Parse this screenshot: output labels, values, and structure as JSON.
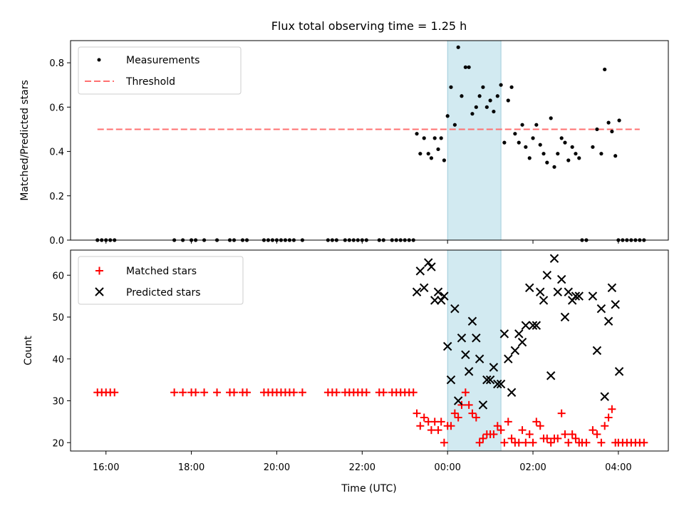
{
  "chart_data": [
    {
      "type": "scatter",
      "title": "Flux total observing time = 1.25 h",
      "ylabel": "Matched/Predicted stars",
      "xlabel": "",
      "ylim": [
        0,
        0.9
      ],
      "yticks": [
        "0.0",
        "0.2",
        "0.4",
        "0.6",
        "0.8"
      ],
      "highlight_band": {
        "from_hours": 24.0,
        "to_hours": 25.25,
        "color": "#add8e6"
      },
      "legend": {
        "position": "top-left",
        "entries": [
          "Measurements",
          "Threshold"
        ]
      },
      "threshold": {
        "name": "Threshold",
        "y": 0.5,
        "x_from_hours": 15.8,
        "x_to_hours": 28.5,
        "color": "#ff7070"
      },
      "series": [
        {
          "name": "Measurements",
          "color": "#000000",
          "points": [
            [
              15.8,
              0
            ],
            [
              15.9,
              0
            ],
            [
              16.0,
              0
            ],
            [
              16.1,
              0
            ],
            [
              16.2,
              0
            ],
            [
              17.6,
              0
            ],
            [
              17.8,
              0
            ],
            [
              18.0,
              0
            ],
            [
              18.1,
              0
            ],
            [
              18.3,
              0
            ],
            [
              18.6,
              0
            ],
            [
              18.9,
              0
            ],
            [
              19.0,
              0
            ],
            [
              19.2,
              0
            ],
            [
              19.3,
              0
            ],
            [
              19.7,
              0
            ],
            [
              19.8,
              0
            ],
            [
              19.9,
              0
            ],
            [
              20.0,
              0
            ],
            [
              20.1,
              0
            ],
            [
              20.2,
              0
            ],
            [
              20.3,
              0
            ],
            [
              20.4,
              0
            ],
            [
              20.6,
              0
            ],
            [
              21.2,
              0
            ],
            [
              21.3,
              0
            ],
            [
              21.4,
              0
            ],
            [
              21.6,
              0
            ],
            [
              21.7,
              0
            ],
            [
              21.8,
              0
            ],
            [
              21.9,
              0
            ],
            [
              22.0,
              0
            ],
            [
              22.1,
              0
            ],
            [
              22.4,
              0
            ],
            [
              22.5,
              0
            ],
            [
              22.7,
              0
            ],
            [
              22.8,
              0
            ],
            [
              22.9,
              0
            ],
            [
              23.0,
              0
            ],
            [
              23.1,
              0
            ],
            [
              23.2,
              0
            ],
            [
              23.28,
              0.48
            ],
            [
              23.36,
              0.39
            ],
            [
              23.45,
              0.46
            ],
            [
              23.55,
              0.39
            ],
            [
              23.62,
              0.37
            ],
            [
              23.7,
              0.46
            ],
            [
              23.78,
              0.41
            ],
            [
              23.85,
              0.46
            ],
            [
              23.92,
              0.36
            ],
            [
              24.0,
              0.56
            ],
            [
              24.08,
              0.69
            ],
            [
              24.17,
              0.52
            ],
            [
              24.25,
              0.87
            ],
            [
              24.33,
              0.65
            ],
            [
              24.42,
              0.78
            ],
            [
              24.5,
              0.78
            ],
            [
              24.58,
              0.57
            ],
            [
              24.67,
              0.6
            ],
            [
              24.75,
              0.65
            ],
            [
              24.83,
              0.69
            ],
            [
              24.92,
              0.6
            ],
            [
              25.0,
              0.63
            ],
            [
              25.08,
              0.58
            ],
            [
              25.17,
              0.65
            ],
            [
              25.25,
              0.7
            ],
            [
              25.33,
              0.44
            ],
            [
              25.42,
              0.63
            ],
            [
              25.5,
              0.69
            ],
            [
              25.58,
              0.48
            ],
            [
              25.67,
              0.44
            ],
            [
              25.75,
              0.52
            ],
            [
              25.83,
              0.42
            ],
            [
              25.92,
              0.37
            ],
            [
              26.0,
              0.46
            ],
            [
              26.08,
              0.52
            ],
            [
              26.17,
              0.43
            ],
            [
              26.25,
              0.39
            ],
            [
              26.33,
              0.35
            ],
            [
              26.42,
              0.55
            ],
            [
              26.5,
              0.33
            ],
            [
              26.58,
              0.39
            ],
            [
              26.67,
              0.46
            ],
            [
              26.75,
              0.44
            ],
            [
              26.83,
              0.36
            ],
            [
              26.92,
              0.42
            ],
            [
              27.0,
              0.39
            ],
            [
              27.08,
              0.37
            ],
            [
              27.15,
              0
            ],
            [
              27.25,
              0
            ],
            [
              27.4,
              0.42
            ],
            [
              27.5,
              0.5
            ],
            [
              27.6,
              0.39
            ],
            [
              27.68,
              0.77
            ],
            [
              27.77,
              0.53
            ],
            [
              27.85,
              0.49
            ],
            [
              27.93,
              0.38
            ],
            [
              28.02,
              0.54
            ],
            [
              28.0,
              0
            ],
            [
              28.1,
              0
            ],
            [
              28.2,
              0
            ],
            [
              28.3,
              0
            ],
            [
              28.4,
              0
            ],
            [
              28.5,
              0
            ],
            [
              28.6,
              0
            ]
          ]
        }
      ]
    },
    {
      "type": "scatter",
      "title": "",
      "ylabel": "Count",
      "xlabel": "Time (UTC)",
      "ylim": [
        18,
        66
      ],
      "yticks": [
        "20",
        "30",
        "40",
        "50",
        "60"
      ],
      "x_tick_labels": [
        "16:00",
        "18:00",
        "20:00",
        "22:00",
        "00:00",
        "02:00",
        "04:00"
      ],
      "x_tick_hours": [
        16,
        18,
        20,
        22,
        24,
        26,
        28
      ],
      "xlim_hours": [
        15.17,
        29.17
      ],
      "highlight_band": {
        "from_hours": 24.0,
        "to_hours": 25.25,
        "color": "#add8e6"
      },
      "legend": {
        "position": "top-left",
        "entries": [
          "Matched stars",
          "Predicted stars"
        ]
      },
      "series": [
        {
          "name": "Matched stars",
          "marker": "plus",
          "color": "#ff0000",
          "points": [
            [
              15.8,
              32
            ],
            [
              15.9,
              32
            ],
            [
              16.0,
              32
            ],
            [
              16.1,
              32
            ],
            [
              16.2,
              32
            ],
            [
              17.6,
              32
            ],
            [
              17.8,
              32
            ],
            [
              18.0,
              32
            ],
            [
              18.1,
              32
            ],
            [
              18.3,
              32
            ],
            [
              18.6,
              32
            ],
            [
              18.9,
              32
            ],
            [
              19.0,
              32
            ],
            [
              19.2,
              32
            ],
            [
              19.3,
              32
            ],
            [
              19.7,
              32
            ],
            [
              19.8,
              32
            ],
            [
              19.9,
              32
            ],
            [
              20.0,
              32
            ],
            [
              20.1,
              32
            ],
            [
              20.2,
              32
            ],
            [
              20.3,
              32
            ],
            [
              20.4,
              32
            ],
            [
              20.6,
              32
            ],
            [
              21.2,
              32
            ],
            [
              21.3,
              32
            ],
            [
              21.4,
              32
            ],
            [
              21.6,
              32
            ],
            [
              21.7,
              32
            ],
            [
              21.8,
              32
            ],
            [
              21.9,
              32
            ],
            [
              22.0,
              32
            ],
            [
              22.1,
              32
            ],
            [
              22.4,
              32
            ],
            [
              22.5,
              32
            ],
            [
              22.7,
              32
            ],
            [
              22.8,
              32
            ],
            [
              22.9,
              32
            ],
            [
              23.0,
              32
            ],
            [
              23.1,
              32
            ],
            [
              23.2,
              32
            ],
            [
              23.28,
              27
            ],
            [
              23.36,
              24
            ],
            [
              23.45,
              26
            ],
            [
              23.55,
              25
            ],
            [
              23.62,
              23
            ],
            [
              23.7,
              25
            ],
            [
              23.78,
              23
            ],
            [
              23.85,
              25
            ],
            [
              23.92,
              20
            ],
            [
              24.0,
              24
            ],
            [
              24.08,
              24
            ],
            [
              24.17,
              27
            ],
            [
              24.25,
              26
            ],
            [
              24.33,
              29
            ],
            [
              24.42,
              32
            ],
            [
              24.5,
              29
            ],
            [
              24.58,
              27
            ],
            [
              24.67,
              26
            ],
            [
              24.75,
              20
            ],
            [
              24.83,
              21
            ],
            [
              24.92,
              22
            ],
            [
              25.0,
              22
            ],
            [
              25.08,
              22
            ],
            [
              25.17,
              24
            ],
            [
              25.25,
              23
            ],
            [
              25.33,
              20
            ],
            [
              25.42,
              25
            ],
            [
              25.5,
              21
            ],
            [
              25.58,
              20
            ],
            [
              25.67,
              20
            ],
            [
              25.75,
              23
            ],
            [
              25.83,
              20
            ],
            [
              25.92,
              22
            ],
            [
              26.0,
              20
            ],
            [
              26.08,
              25
            ],
            [
              26.17,
              24
            ],
            [
              26.25,
              21
            ],
            [
              26.33,
              21
            ],
            [
              26.42,
              20
            ],
            [
              26.5,
              21
            ],
            [
              26.58,
              21
            ],
            [
              26.67,
              27
            ],
            [
              26.75,
              22
            ],
            [
              26.83,
              20
            ],
            [
              26.92,
              22
            ],
            [
              27.0,
              21
            ],
            [
              27.08,
              20
            ],
            [
              27.15,
              20
            ],
            [
              27.25,
              20
            ],
            [
              27.4,
              23
            ],
            [
              27.5,
              22
            ],
            [
              27.6,
              20
            ],
            [
              27.68,
              24
            ],
            [
              27.77,
              26
            ],
            [
              27.85,
              28
            ],
            [
              27.93,
              20
            ],
            [
              28.0,
              20
            ],
            [
              28.1,
              20
            ],
            [
              28.2,
              20
            ],
            [
              28.3,
              20
            ],
            [
              28.4,
              20
            ],
            [
              28.5,
              20
            ],
            [
              28.6,
              20
            ]
          ]
        },
        {
          "name": "Predicted stars",
          "marker": "x",
          "color": "#000000",
          "points": [
            [
              23.28,
              56
            ],
            [
              23.36,
              61
            ],
            [
              23.45,
              57
            ],
            [
              23.55,
              63
            ],
            [
              23.62,
              62
            ],
            [
              23.7,
              54
            ],
            [
              23.78,
              56
            ],
            [
              23.85,
              54
            ],
            [
              23.92,
              55
            ],
            [
              24.0,
              43
            ],
            [
              24.08,
              35
            ],
            [
              24.17,
              52
            ],
            [
              24.25,
              30
            ],
            [
              24.33,
              45
            ],
            [
              24.42,
              41
            ],
            [
              24.5,
              37
            ],
            [
              24.58,
              49
            ],
            [
              24.67,
              45
            ],
            [
              24.75,
              40
            ],
            [
              24.83,
              29
            ],
            [
              24.92,
              35
            ],
            [
              25.0,
              35
            ],
            [
              25.08,
              38
            ],
            [
              25.17,
              34
            ],
            [
              25.25,
              34
            ],
            [
              25.33,
              46
            ],
            [
              25.42,
              40
            ],
            [
              25.5,
              32
            ],
            [
              25.58,
              42
            ],
            [
              25.67,
              46
            ],
            [
              25.75,
              44
            ],
            [
              25.83,
              48
            ],
            [
              25.92,
              57
            ],
            [
              26.0,
              48
            ],
            [
              26.08,
              48
            ],
            [
              26.17,
              56
            ],
            [
              26.25,
              54
            ],
            [
              26.33,
              60
            ],
            [
              26.42,
              36
            ],
            [
              26.5,
              64
            ],
            [
              26.58,
              56
            ],
            [
              26.67,
              59
            ],
            [
              26.75,
              50
            ],
            [
              26.83,
              56
            ],
            [
              26.92,
              54
            ],
            [
              27.0,
              55
            ],
            [
              27.08,
              55
            ],
            [
              27.4,
              55
            ],
            [
              27.5,
              42
            ],
            [
              27.6,
              52
            ],
            [
              27.68,
              31
            ],
            [
              27.77,
              49
            ],
            [
              27.85,
              57
            ],
            [
              27.93,
              53
            ],
            [
              28.02,
              37
            ]
          ]
        }
      ]
    }
  ]
}
